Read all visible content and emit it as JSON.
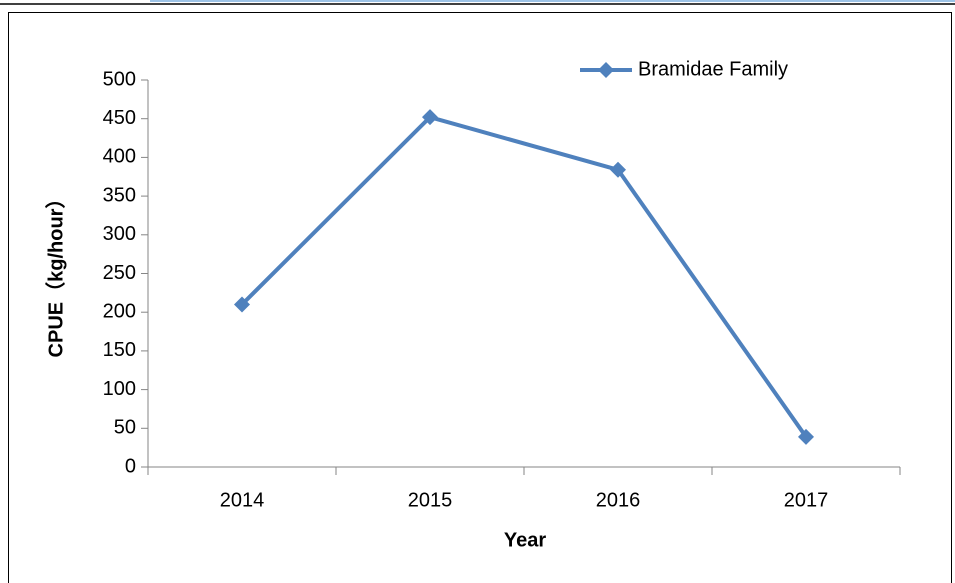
{
  "chart_data": {
    "type": "line",
    "x_label": "Year",
    "y_label": "CPUE（kg/hour）",
    "categories": [
      "2014",
      "2015",
      "2016",
      "2017"
    ],
    "series": [
      {
        "name": "Bramidae Family",
        "color": "#4f81bd",
        "values": [
          210,
          452,
          384,
          39
        ]
      }
    ],
    "ylim": [
      0,
      500
    ],
    "yticks": [
      0,
      50,
      100,
      150,
      200,
      250,
      300,
      350,
      400,
      450,
      500
    ],
    "legend": "top-right",
    "grid": false
  }
}
